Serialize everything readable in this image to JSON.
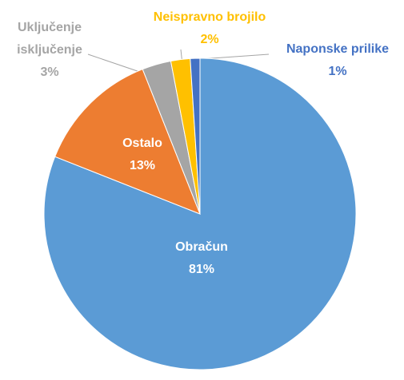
{
  "chart_data": {
    "type": "pie",
    "categories": [
      "Obračun",
      "Ostalo",
      "Uključenje\nisključenje",
      "Neispravno brojilo",
      "Naponske prilike"
    ],
    "values": [
      81,
      13,
      3,
      2,
      1
    ],
    "value_labels": [
      "81%",
      "13%",
      "3%",
      "2%",
      "1%"
    ],
    "colors": [
      "#5b9bd5",
      "#ed7d31",
      "#a5a5a5",
      "#ffc000",
      "#4472c4"
    ]
  }
}
